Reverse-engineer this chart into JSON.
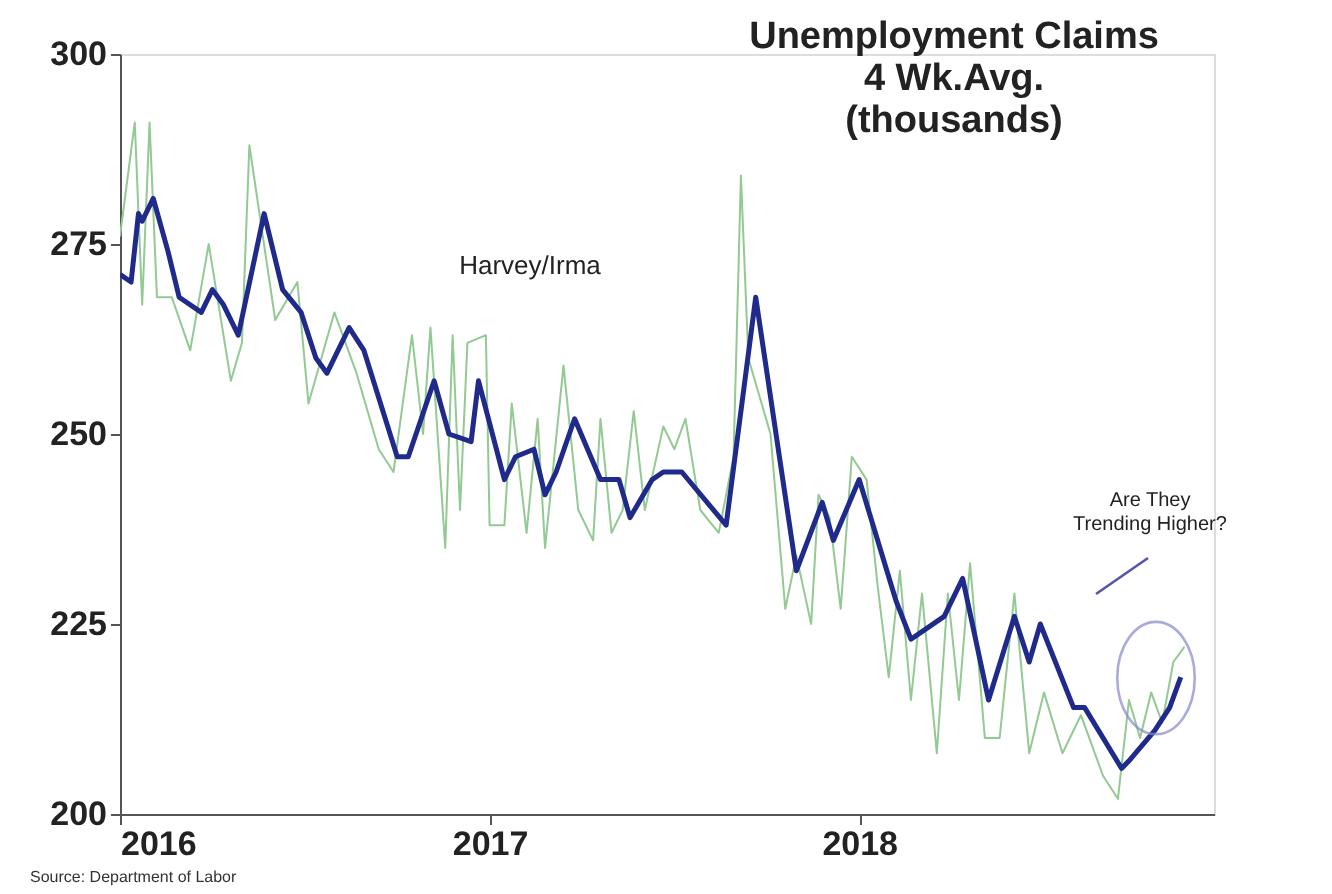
{
  "chart_data": {
    "type": "line",
    "title": "Unemployment Claims\n4 Wk.Avg.\n(thousands)",
    "xlim": [
      2016,
      2018.96
    ],
    "xticks": [
      2016,
      2017,
      2018
    ],
    "ylim": [
      200,
      300
    ],
    "yticks": [
      200,
      225,
      250,
      275,
      300
    ],
    "grid": false,
    "marker": "none",
    "line_style": "solid",
    "series": [
      {
        "color": "#93c993",
        "x": [
          2016.0,
          2016.04,
          2016.06,
          2016.08,
          2016.1,
          2016.14,
          2016.19,
          2016.24,
          2016.3,
          2016.33,
          2016.35,
          2016.42,
          2016.48,
          2016.51,
          2016.58,
          2016.64,
          2016.7,
          2016.74,
          2016.79,
          2016.82,
          2016.84,
          2016.88,
          2016.9,
          2016.92,
          2016.94,
          2016.99,
          2017.0,
          2017.04,
          2017.06,
          2017.1,
          2017.13,
          2017.15,
          2017.2,
          2017.24,
          2017.28,
          2017.3,
          2017.33,
          2017.36,
          2017.39,
          2017.42,
          2017.47,
          2017.5,
          2017.53,
          2017.57,
          2017.62,
          2017.66,
          2017.68,
          2017.7,
          2017.76,
          2017.8,
          2017.83,
          2017.87,
          2017.89,
          2017.92,
          2017.95,
          2017.98,
          2018.02,
          2018.05,
          2018.08,
          2018.11,
          2018.14,
          2018.17,
          2018.21,
          2018.24,
          2018.27,
          2018.3,
          2018.34,
          2018.38,
          2018.42,
          2018.46,
          2018.5,
          2018.55,
          2018.6,
          2018.66,
          2018.7,
          2018.73,
          2018.76,
          2018.79,
          2018.82,
          2018.85,
          2018.88
        ],
        "values": [
          276,
          291,
          267,
          291,
          268,
          268,
          261,
          275,
          257,
          262,
          288,
          265,
          270,
          254,
          266,
          258,
          248,
          245,
          263,
          250,
          264,
          235,
          263,
          240,
          262,
          263,
          238,
          238,
          254,
          237,
          252,
          235,
          259,
          240,
          236,
          252,
          237,
          240,
          253,
          240,
          251,
          248,
          252,
          240,
          237,
          247,
          284,
          260,
          250,
          227,
          234,
          225,
          242,
          239,
          227,
          247,
          244,
          230,
          218,
          232,
          215,
          229,
          208,
          229,
          215,
          233,
          210,
          210,
          229,
          208,
          216,
          208,
          213,
          205,
          202,
          215,
          210,
          216,
          212,
          220,
          222
        ]
      },
      {
        "color": "#1f2a8a",
        "x": [
          2016.0,
          2016.03,
          2016.05,
          2016.06,
          2016.09,
          2016.13,
          2016.16,
          2016.22,
          2016.25,
          2016.28,
          2016.32,
          2016.39,
          2016.44,
          2016.49,
          2016.53,
          2016.56,
          2016.62,
          2016.66,
          2016.75,
          2016.78,
          2016.85,
          2016.89,
          2016.95,
          2016.97,
          2017.04,
          2017.07,
          2017.12,
          2017.15,
          2017.18,
          2017.23,
          2017.3,
          2017.35,
          2017.38,
          2017.44,
          2017.47,
          2017.52,
          2017.64,
          2017.72,
          2017.83,
          2017.9,
          2017.93,
          2018.0,
          2018.1,
          2018.14,
          2018.17,
          2018.23,
          2018.28,
          2018.35,
          2018.42,
          2018.46,
          2018.49,
          2018.58,
          2018.61,
          2018.71,
          2018.73,
          2018.8,
          2018.84,
          2018.87
        ],
        "values": [
          271,
          270,
          279,
          278,
          281,
          274,
          268,
          266,
          269,
          267,
          263,
          279,
          269,
          266,
          260,
          258,
          264,
          261,
          247,
          247,
          257,
          250,
          249,
          257,
          244,
          247,
          248,
          242,
          245,
          252,
          244,
          244,
          239,
          244,
          245,
          245,
          238,
          268,
          232,
          241,
          236,
          244,
          228,
          223,
          224,
          226,
          231,
          215,
          226,
          220,
          225,
          214,
          214,
          206,
          207,
          211,
          214,
          218
        ]
      }
    ],
    "annotations": [
      "Harvey/Irma",
      "Are They\nTrending Higher?",
      "Source:  Department of Labor"
    ]
  }
}
